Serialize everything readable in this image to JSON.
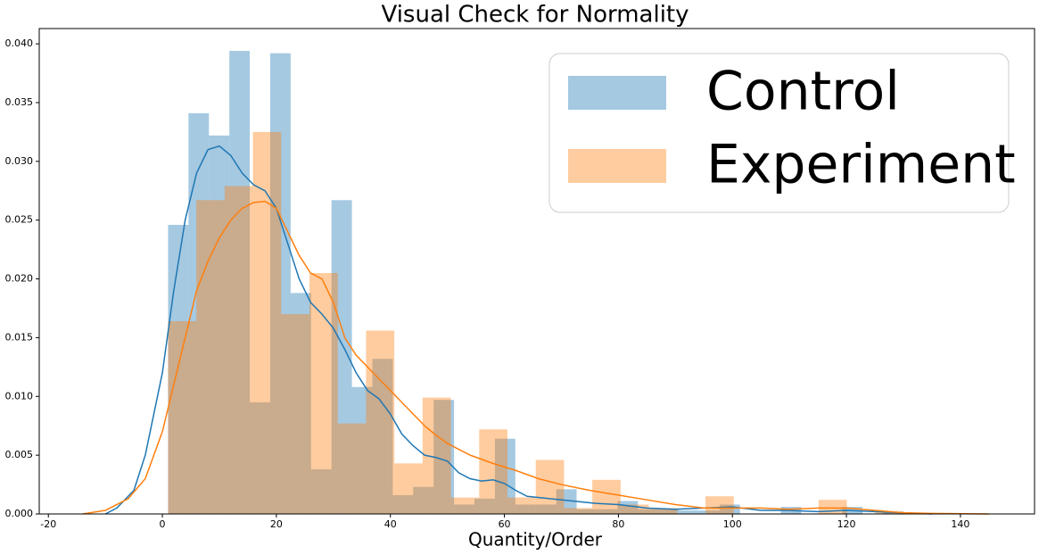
{
  "chart_data": {
    "type": "histogram",
    "title": "Visual Check for Normality",
    "x_label": "Quantity/Order",
    "xlim": [
      -21.6,
      153
    ],
    "ylim": [
      0,
      0.0413
    ],
    "xticks": [
      -20,
      0,
      20,
      40,
      60,
      80,
      100,
      120,
      140
    ],
    "yticks": [
      {
        "value": 0,
        "label": "0.000"
      },
      {
        "value": 0.005,
        "label": "0.005"
      },
      {
        "value": 0.01,
        "label": "0.010"
      },
      {
        "value": 0.015,
        "label": "0.015"
      },
      {
        "value": 0.02,
        "label": "0.020"
      },
      {
        "value": 0.025,
        "label": "0.025"
      },
      {
        "value": 0.03,
        "label": "0.030"
      },
      {
        "value": 0.035,
        "label": "0.035"
      },
      {
        "value": 0.04,
        "label": "0.040"
      }
    ],
    "legend": "upper right",
    "series": [
      {
        "name": "Control",
        "color": "#1f77b4",
        "bins": [
          1,
          4.583,
          8.167,
          11.75,
          15.333,
          18.917,
          22.5,
          26.083,
          29.667,
          33.25,
          36.833,
          40.417,
          44,
          47.583,
          51.167,
          54.75,
          58.333,
          61.917,
          65.5,
          69.083,
          72.667,
          76.25,
          79.833,
          83.417,
          87,
          90.583,
          94.167,
          97.75,
          101.333,
          104.917,
          108.5,
          112.083,
          115.667,
          119.25,
          122.833,
          126.417,
          130
        ],
        "values": [
          0.0246,
          0.0341,
          0.0322,
          0.0394,
          0.0095,
          0.0392,
          0.0188,
          0.0038,
          0.0267,
          0.0108,
          0.0132,
          0.0016,
          0.0023,
          0.0097,
          0.0008,
          0.0013,
          0.0064,
          0.0008,
          0.0008,
          0.0021,
          0.0004,
          0.0004,
          0.0011,
          0.0004,
          0.0004,
          0.0003,
          0.0003,
          0.0008,
          0,
          0,
          0.0006,
          0,
          0,
          0.0006,
          0,
          0.0002
        ],
        "kde": {
          "x": [
            -10,
            -8,
            -5,
            -3,
            0,
            2,
            4,
            6,
            8,
            10,
            12,
            14,
            16,
            18,
            20,
            22,
            24,
            26,
            28,
            30,
            32,
            34,
            36,
            38,
            40,
            42,
            44,
            46,
            48,
            50,
            52,
            54,
            56,
            58,
            60,
            62,
            64,
            68,
            72,
            76,
            80,
            85,
            90,
            95,
            100,
            105,
            110,
            115,
            120,
            125,
            130,
            135
          ],
          "values": [
            0,
            0.0005,
            0.002,
            0.005,
            0.012,
            0.019,
            0.025,
            0.029,
            0.031,
            0.0313,
            0.0305,
            0.029,
            0.028,
            0.0275,
            0.026,
            0.023,
            0.02,
            0.018,
            0.017,
            0.0158,
            0.014,
            0.012,
            0.0105,
            0.0098,
            0.0085,
            0.0068,
            0.0058,
            0.005,
            0.0048,
            0.0045,
            0.0035,
            0.003,
            0.0028,
            0.0029,
            0.0026,
            0.002,
            0.0015,
            0.0013,
            0.0011,
            0.0009,
            0.0008,
            0.0005,
            0.0004,
            0.0005,
            0.0006,
            0.0003,
            0.0003,
            0.0002,
            0.0003,
            0.0002,
            0.0001,
            0
          ]
        }
      },
      {
        "name": "Experiment",
        "color": "#ff7f0e",
        "bins": [
          1,
          5.962,
          10.923,
          15.885,
          20.846,
          25.808,
          30.769,
          35.731,
          40.692,
          45.654,
          50.615,
          55.577,
          60.538,
          65.5,
          70.462,
          75.423,
          80.385,
          85.346,
          90.308,
          95.269,
          100.231,
          105.192,
          110.154,
          115.115,
          120.077,
          125.038,
          130
        ],
        "values": [
          0.0164,
          0.0267,
          0.0279,
          0.0325,
          0.017,
          0.0205,
          0.0077,
          0.0156,
          0.0043,
          0.0099,
          0.0014,
          0.0072,
          0.0014,
          0.0046,
          0.0005,
          0.0029,
          0.0008,
          0.0005,
          0,
          0.0015,
          0,
          0,
          0,
          0.0012,
          0,
          0.0002
        ],
        "kde": {
          "x": [
            -14,
            -10,
            -6,
            -3,
            0,
            2,
            4,
            6,
            8,
            10,
            12,
            14,
            16,
            18,
            20,
            22,
            24,
            26,
            28,
            30,
            32,
            34,
            36,
            38,
            40,
            42,
            44,
            46,
            48,
            50,
            54,
            58,
            62,
            66,
            70,
            75,
            80,
            85,
            90,
            95,
            100,
            105,
            110,
            115,
            120,
            125,
            130,
            135,
            145
          ],
          "values": [
            0,
            0.0003,
            0.0013,
            0.003,
            0.007,
            0.011,
            0.015,
            0.019,
            0.0215,
            0.0235,
            0.025,
            0.026,
            0.0265,
            0.0266,
            0.026,
            0.024,
            0.022,
            0.0205,
            0.02,
            0.018,
            0.015,
            0.0135,
            0.0125,
            0.0115,
            0.0105,
            0.0095,
            0.0085,
            0.0075,
            0.0067,
            0.006,
            0.005,
            0.0043,
            0.0037,
            0.003,
            0.0025,
            0.002,
            0.0016,
            0.0012,
            0.0008,
            0.0005,
            0.0005,
            0.0005,
            0.0004,
            0.0005,
            0.0005,
            0.0003,
            0.0001,
            5e-05,
            0
          ]
        }
      }
    ]
  }
}
